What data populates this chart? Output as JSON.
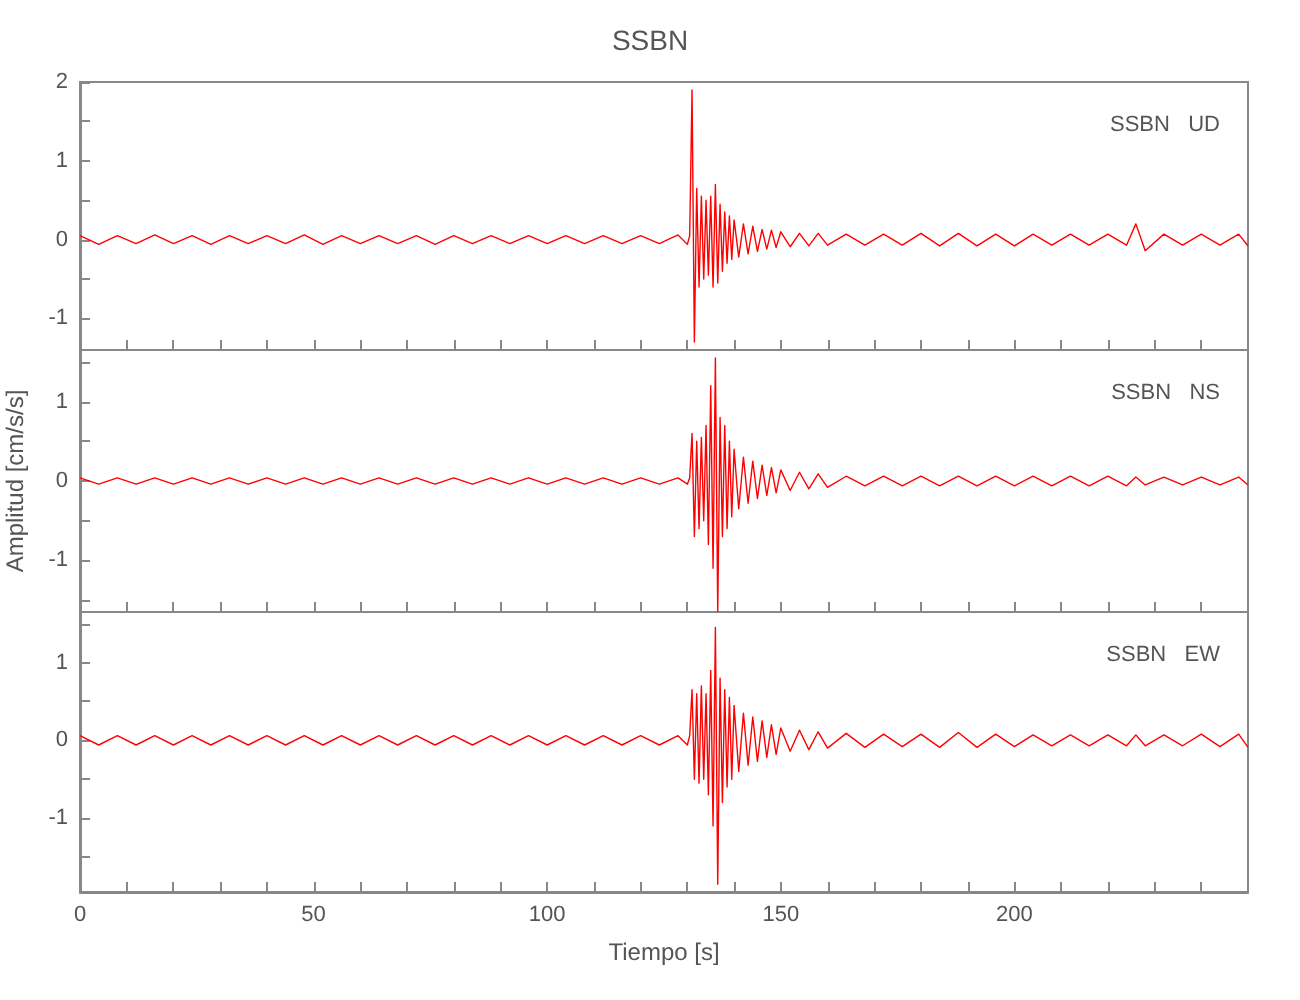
{
  "chart_data": [
    {
      "type": "line",
      "title": "SSBN",
      "annotations": [
        "SSBN   UD"
      ],
      "marker": "none",
      "tick_labels": "y",
      "xlim": [
        0,
        250
      ],
      "ylim": [
        -1.4,
        2
      ],
      "xticks": [
        0,
        {
          "value": 10,
          "label": null
        },
        {
          "value": 20,
          "label": null
        },
        {
          "value": 30,
          "label": null
        },
        {
          "value": 40,
          "label": null
        },
        50,
        {
          "value": 60,
          "label": null
        },
        {
          "value": 70,
          "label": null
        },
        {
          "value": 80,
          "label": null
        },
        {
          "value": 90,
          "label": null
        },
        100,
        {
          "value": 110,
          "label": null
        },
        {
          "value": 120,
          "label": null
        },
        {
          "value": 130,
          "label": null
        },
        {
          "value": 140,
          "label": null
        },
        150,
        {
          "value": 160,
          "label": null
        },
        {
          "value": 170,
          "label": null
        },
        {
          "value": 180,
          "label": null
        },
        {
          "value": 190,
          "label": null
        },
        200,
        {
          "value": 210,
          "label": null
        },
        {
          "value": 220,
          "label": null
        },
        {
          "value": 230,
          "label": null
        },
        {
          "value": 240,
          "label": null
        }
      ],
      "yticks": [
        -1,
        {
          "value": -0.5,
          "label": null
        },
        0,
        {
          "value": 0.5,
          "label": null
        },
        1,
        {
          "value": 1.5,
          "label": null
        },
        2
      ],
      "x": [
        0,
        4,
        8,
        12,
        16,
        20,
        24,
        28,
        32,
        36,
        40,
        44,
        48,
        52,
        56,
        60,
        64,
        68,
        72,
        76,
        80,
        84,
        88,
        92,
        96,
        100,
        104,
        108,
        112,
        116,
        120,
        124,
        128,
        130,
        130.5,
        131,
        131.5,
        132,
        132.5,
        133,
        133.5,
        134,
        134.5,
        135,
        135.5,
        136,
        136.5,
        137,
        137.5,
        138,
        138.5,
        139,
        139.5,
        140,
        141,
        142,
        143,
        144,
        145,
        146,
        147,
        148,
        149,
        150,
        152,
        154,
        156,
        158,
        160,
        164,
        168,
        172,
        176,
        180,
        184,
        188,
        192,
        196,
        200,
        204,
        208,
        212,
        216,
        220,
        224,
        226,
        228,
        232,
        236,
        240,
        244,
        248,
        250
      ],
      "series": [
        {
          "color": "#ff0000",
          "values": [
            0.05,
            -0.06,
            0.05,
            -0.05,
            0.06,
            -0.05,
            0.05,
            -0.06,
            0.05,
            -0.05,
            0.05,
            -0.05,
            0.06,
            -0.06,
            0.05,
            -0.05,
            0.05,
            -0.05,
            0.05,
            -0.06,
            0.05,
            -0.05,
            0.05,
            -0.05,
            0.05,
            -0.05,
            0.05,
            -0.05,
            0.05,
            -0.05,
            0.05,
            -0.05,
            0.06,
            -0.06,
            0.05,
            1.9,
            -1.3,
            0.65,
            -0.6,
            0.55,
            -0.5,
            0.5,
            -0.45,
            0.55,
            -0.6,
            0.7,
            -0.55,
            0.45,
            -0.4,
            0.35,
            -0.3,
            0.3,
            -0.25,
            0.25,
            -0.22,
            0.2,
            -0.18,
            0.17,
            -0.15,
            0.13,
            -0.12,
            0.12,
            -0.1,
            0.1,
            -0.09,
            0.08,
            -0.08,
            0.08,
            -0.07,
            0.07,
            -0.07,
            0.07,
            -0.07,
            0.08,
            -0.08,
            0.08,
            -0.08,
            0.07,
            -0.08,
            0.07,
            -0.07,
            0.07,
            -0.07,
            0.07,
            -0.07,
            0.2,
            -0.14,
            0.07,
            -0.07,
            0.07,
            -0.07,
            0.07,
            -0.08
          ]
        }
      ]
    },
    {
      "type": "line",
      "ylabel": "Amplitud [cm/s/s]",
      "annotations": [
        "SSBN   NS"
      ],
      "marker": "none",
      "tick_labels": "y",
      "xlim": [
        0,
        250
      ],
      "ylim": [
        -1.65,
        1.65
      ],
      "xticks": [
        0,
        {
          "value": 10,
          "label": null
        },
        {
          "value": 20,
          "label": null
        },
        {
          "value": 30,
          "label": null
        },
        {
          "value": 40,
          "label": null
        },
        50,
        {
          "value": 60,
          "label": null
        },
        {
          "value": 70,
          "label": null
        },
        {
          "value": 80,
          "label": null
        },
        {
          "value": 90,
          "label": null
        },
        100,
        {
          "value": 110,
          "label": null
        },
        {
          "value": 120,
          "label": null
        },
        {
          "value": 130,
          "label": null
        },
        {
          "value": 140,
          "label": null
        },
        150,
        {
          "value": 160,
          "label": null
        },
        {
          "value": 170,
          "label": null
        },
        {
          "value": 180,
          "label": null
        },
        {
          "value": 190,
          "label": null
        },
        200,
        {
          "value": 210,
          "label": null
        },
        {
          "value": 220,
          "label": null
        },
        {
          "value": 230,
          "label": null
        },
        {
          "value": 240,
          "label": null
        }
      ],
      "yticks": [
        {
          "value": -1.5,
          "label": null
        },
        -1,
        {
          "value": -0.5,
          "label": null
        },
        0,
        {
          "value": 0.5,
          "label": null
        },
        1,
        {
          "value": 1.5,
          "label": null
        }
      ],
      "x": [
        0,
        4,
        8,
        12,
        16,
        20,
        24,
        28,
        32,
        36,
        40,
        44,
        48,
        52,
        56,
        60,
        64,
        68,
        72,
        76,
        80,
        84,
        88,
        92,
        96,
        100,
        104,
        108,
        112,
        116,
        120,
        124,
        128,
        130,
        130.5,
        131,
        131.5,
        132,
        132.5,
        133,
        133.5,
        134,
        134.5,
        135,
        135.5,
        136,
        136.5,
        137,
        137.5,
        138,
        138.5,
        139,
        139.5,
        140,
        141,
        142,
        143,
        144,
        145,
        146,
        147,
        148,
        149,
        150,
        152,
        154,
        156,
        158,
        160,
        164,
        168,
        172,
        176,
        180,
        184,
        188,
        192,
        196,
        200,
        204,
        208,
        212,
        216,
        220,
        224,
        226,
        228,
        232,
        236,
        240,
        244,
        248,
        250
      ],
      "series": [
        {
          "color": "#ff0000",
          "values": [
            0.04,
            -0.04,
            0.04,
            -0.04,
            0.04,
            -0.04,
            0.04,
            -0.04,
            0.04,
            -0.04,
            0.04,
            -0.04,
            0.04,
            -0.04,
            0.04,
            -0.04,
            0.04,
            -0.04,
            0.04,
            -0.04,
            0.04,
            -0.04,
            0.04,
            -0.04,
            0.04,
            -0.04,
            0.04,
            -0.04,
            0.04,
            -0.04,
            0.04,
            -0.04,
            0.04,
            -0.04,
            0.04,
            0.6,
            -0.7,
            0.5,
            -0.6,
            0.55,
            -0.5,
            0.7,
            -0.8,
            1.2,
            -1.1,
            1.55,
            -1.65,
            0.8,
            -0.7,
            0.7,
            -0.6,
            0.5,
            -0.45,
            0.4,
            -0.35,
            0.3,
            -0.28,
            0.25,
            -0.22,
            0.2,
            -0.18,
            0.17,
            -0.15,
            0.14,
            -0.12,
            0.11,
            -0.1,
            0.09,
            -0.08,
            0.06,
            -0.06,
            0.06,
            -0.06,
            0.06,
            -0.06,
            0.06,
            -0.06,
            0.06,
            -0.06,
            0.06,
            -0.06,
            0.06,
            -0.06,
            0.06,
            -0.06,
            0.05,
            -0.05,
            0.05,
            -0.05,
            0.05,
            -0.05,
            0.05,
            -0.05
          ]
        }
      ]
    },
    {
      "type": "line",
      "xlabel": "Tiempo [s]",
      "annotations": [
        "SSBN   EW"
      ],
      "marker": "none",
      "xlim": [
        0,
        250
      ],
      "ylim": [
        -1.95,
        1.65
      ],
      "xticks": [
        0,
        {
          "value": 10,
          "label": null
        },
        {
          "value": 20,
          "label": null
        },
        {
          "value": 30,
          "label": null
        },
        {
          "value": 40,
          "label": null
        },
        50,
        {
          "value": 60,
          "label": null
        },
        {
          "value": 70,
          "label": null
        },
        {
          "value": 80,
          "label": null
        },
        {
          "value": 90,
          "label": null
        },
        100,
        {
          "value": 110,
          "label": null
        },
        {
          "value": 120,
          "label": null
        },
        {
          "value": 130,
          "label": null
        },
        {
          "value": 140,
          "label": null
        },
        150,
        {
          "value": 160,
          "label": null
        },
        {
          "value": 170,
          "label": null
        },
        {
          "value": 180,
          "label": null
        },
        {
          "value": 190,
          "label": null
        },
        200,
        {
          "value": 210,
          "label": null
        },
        {
          "value": 220,
          "label": null
        },
        {
          "value": 230,
          "label": null
        },
        {
          "value": 240,
          "label": null
        }
      ],
      "yticks": [
        {
          "value": -1.5,
          "label": null
        },
        -1,
        {
          "value": -0.5,
          "label": null
        },
        0,
        {
          "value": 0.5,
          "label": null
        },
        1,
        {
          "value": 1.5,
          "label": null
        }
      ],
      "x": [
        0,
        4,
        8,
        12,
        16,
        20,
        24,
        28,
        32,
        36,
        40,
        44,
        48,
        52,
        56,
        60,
        64,
        68,
        72,
        76,
        80,
        84,
        88,
        92,
        96,
        100,
        104,
        108,
        112,
        116,
        120,
        124,
        128,
        130,
        130.5,
        131,
        131.5,
        132,
        132.5,
        133,
        133.5,
        134,
        134.5,
        135,
        135.5,
        136,
        136.5,
        137,
        137.5,
        138,
        138.5,
        139,
        139.5,
        140,
        141,
        142,
        143,
        144,
        145,
        146,
        147,
        148,
        149,
        150,
        152,
        154,
        156,
        158,
        160,
        164,
        168,
        172,
        176,
        180,
        184,
        188,
        192,
        196,
        200,
        204,
        208,
        212,
        216,
        220,
        224,
        226,
        228,
        232,
        236,
        240,
        244,
        248,
        250
      ],
      "series": [
        {
          "color": "#ff0000",
          "values": [
            0.06,
            -0.06,
            0.06,
            -0.06,
            0.06,
            -0.06,
            0.06,
            -0.06,
            0.06,
            -0.06,
            0.06,
            -0.06,
            0.06,
            -0.06,
            0.06,
            -0.06,
            0.06,
            -0.06,
            0.06,
            -0.06,
            0.06,
            -0.06,
            0.06,
            -0.06,
            0.06,
            -0.06,
            0.06,
            -0.06,
            0.06,
            -0.06,
            0.06,
            -0.06,
            0.06,
            -0.06,
            0.06,
            0.65,
            -0.5,
            0.6,
            -0.55,
            0.7,
            -0.5,
            0.6,
            -0.7,
            0.9,
            -1.1,
            1.45,
            -1.85,
            0.8,
            -0.8,
            0.65,
            -0.6,
            0.55,
            -0.5,
            0.45,
            -0.4,
            0.35,
            -0.32,
            0.3,
            -0.27,
            0.25,
            -0.22,
            0.2,
            -0.18,
            0.16,
            -0.14,
            0.13,
            -0.12,
            0.11,
            -0.1,
            0.09,
            -0.09,
            0.08,
            -0.08,
            0.08,
            -0.09,
            0.1,
            -0.09,
            0.08,
            -0.08,
            0.07,
            -0.07,
            0.07,
            -0.07,
            0.07,
            -0.07,
            0.07,
            -0.07,
            0.07,
            -0.07,
            0.08,
            -0.08,
            0.08,
            -0.09
          ]
        }
      ]
    }
  ]
}
